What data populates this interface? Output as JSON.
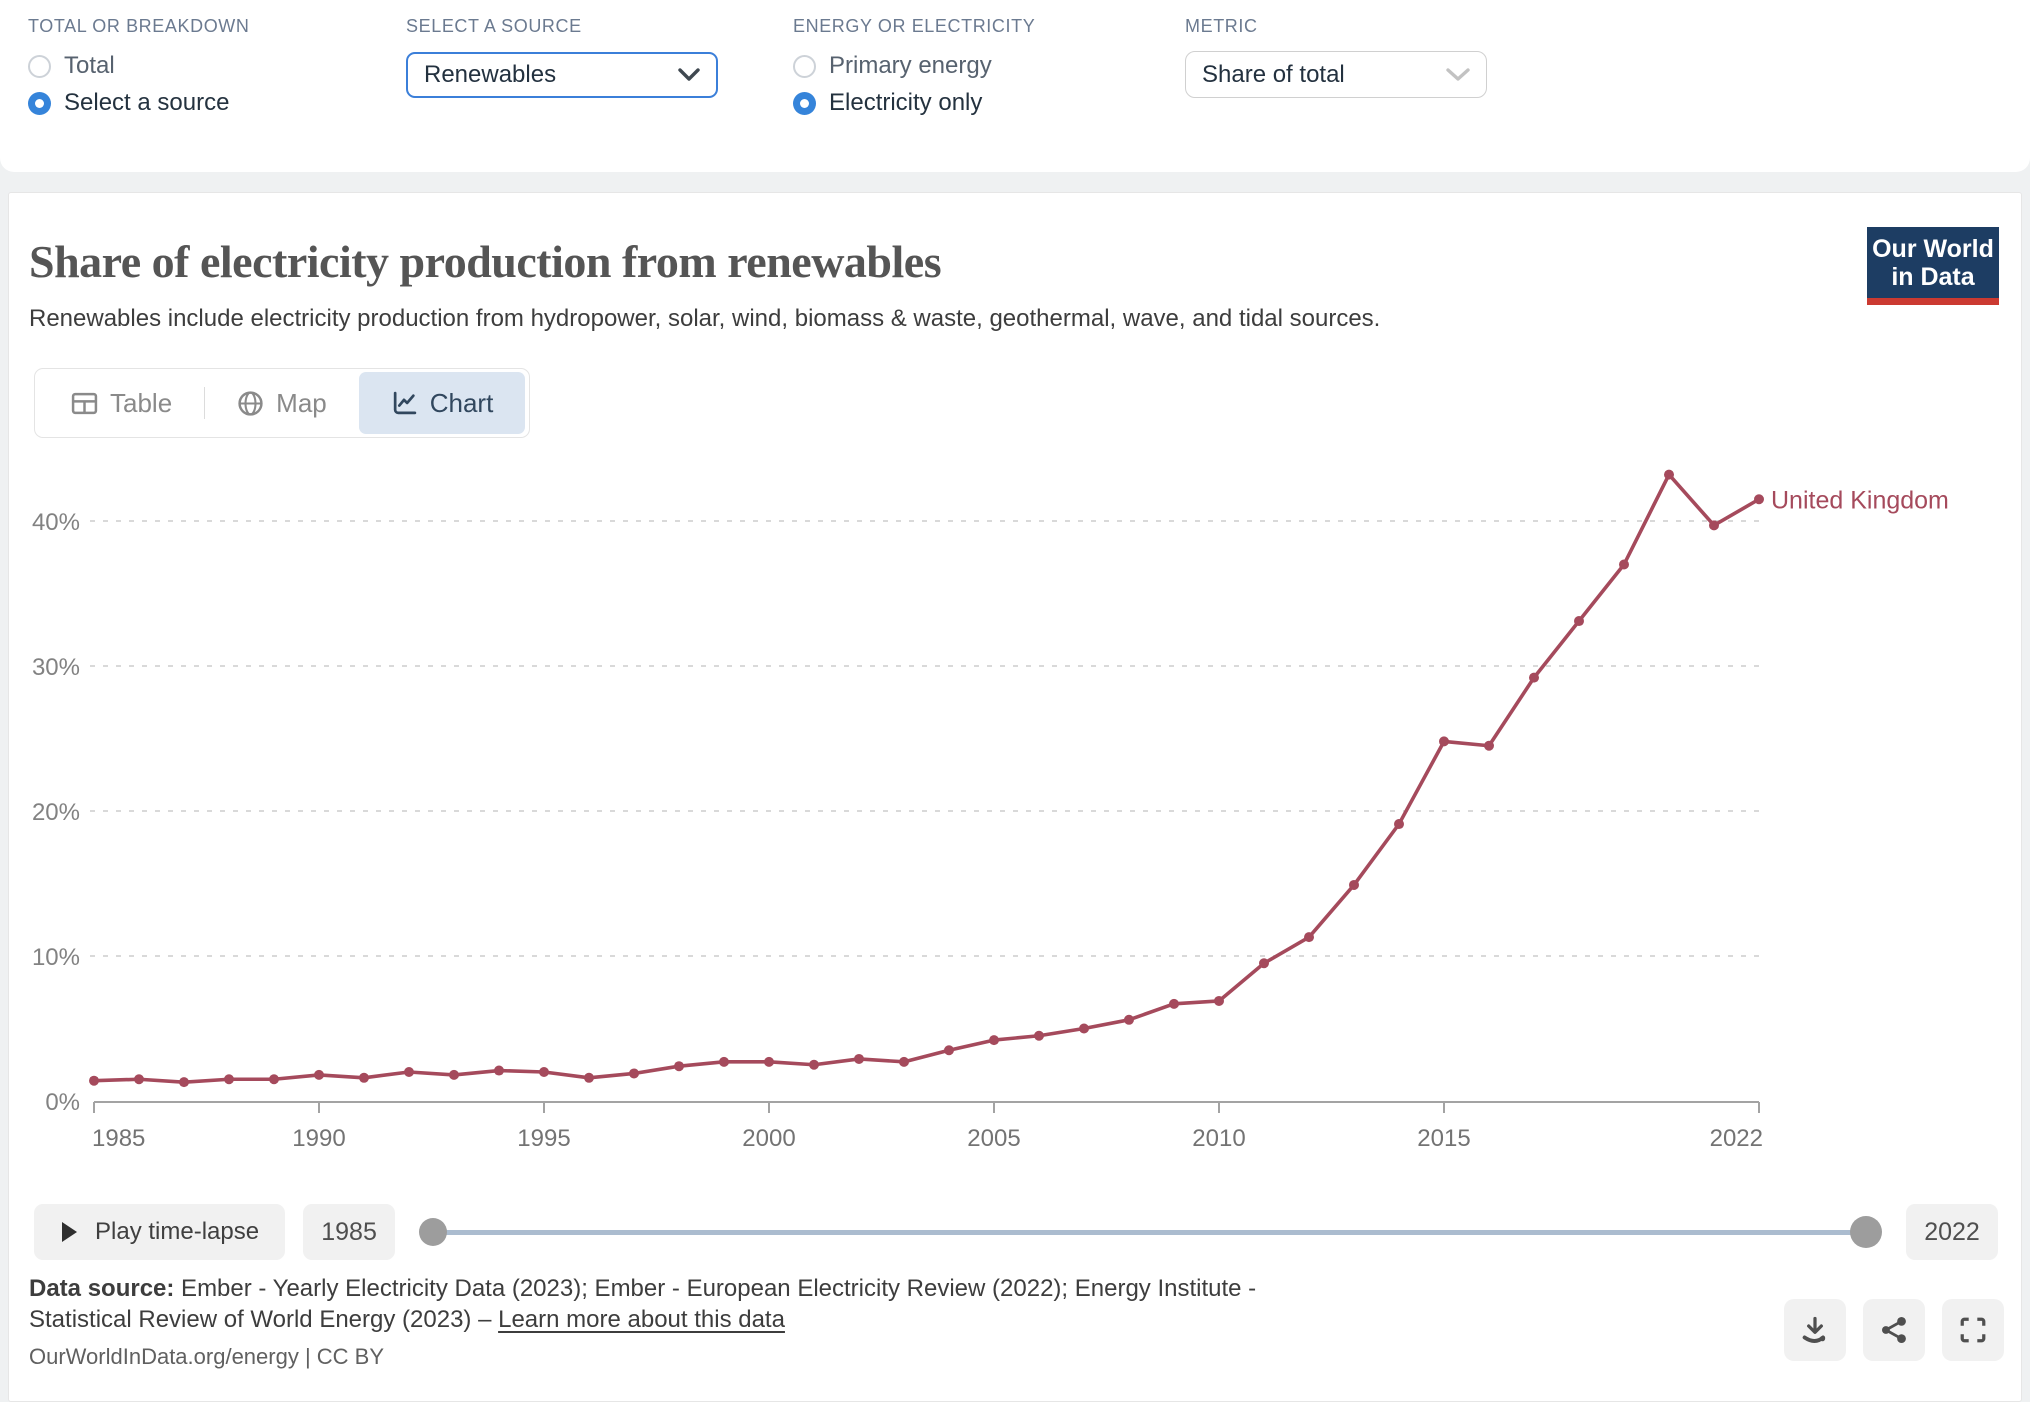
{
  "controls": {
    "total_or_breakdown": {
      "label": "TOTAL OR BREAKDOWN",
      "options": [
        {
          "label": "Total",
          "selected": false
        },
        {
          "label": "Select a source",
          "selected": true
        }
      ]
    },
    "source": {
      "label": "SELECT A SOURCE",
      "value": "Renewables"
    },
    "energy_or_electricity": {
      "label": "ENERGY OR ELECTRICITY",
      "options": [
        {
          "label": "Primary energy",
          "selected": false
        },
        {
          "label": "Electricity only",
          "selected": true
        }
      ]
    },
    "metric": {
      "label": "METRIC",
      "value": "Share of total"
    }
  },
  "header": {
    "title": "Share of electricity production from renewables",
    "subtitle": "Renewables include electricity production from hydropower, solar, wind, biomass & waste, geothermal, wave, and tidal sources.",
    "logo_line1": "Our World",
    "logo_line2": "in Data"
  },
  "tabs": [
    {
      "label": "Table",
      "active": false
    },
    {
      "label": "Map",
      "active": false
    },
    {
      "label": "Chart",
      "active": true
    }
  ],
  "chart_data": {
    "type": "line",
    "title": "Share of electricity production from renewables",
    "entity_label": "United Kingdom",
    "xlabel": "",
    "ylabel": "",
    "xlim": [
      1985,
      2022
    ],
    "ylim": [
      0,
      45
    ],
    "x_ticks": [
      1985,
      1990,
      1995,
      2000,
      2005,
      2010,
      2015,
      2022
    ],
    "y_ticks": [
      0,
      10,
      20,
      30,
      40
    ],
    "y_tick_suffix": "%",
    "grid": "dashed-horizontal",
    "legend_position": "end-of-line-label",
    "series": [
      {
        "name": "United Kingdom",
        "color": "#a54a5c",
        "x": [
          1985,
          1986,
          1987,
          1988,
          1989,
          1990,
          1991,
          1992,
          1993,
          1994,
          1995,
          1996,
          1997,
          1998,
          1999,
          2000,
          2001,
          2002,
          2003,
          2004,
          2005,
          2006,
          2007,
          2008,
          2009,
          2010,
          2011,
          2012,
          2013,
          2014,
          2015,
          2016,
          2017,
          2018,
          2019,
          2020,
          2021,
          2022
        ],
        "values": [
          1.4,
          1.5,
          1.3,
          1.5,
          1.5,
          1.8,
          1.6,
          2.0,
          1.8,
          2.1,
          2.0,
          1.6,
          1.9,
          2.4,
          2.7,
          2.7,
          2.5,
          2.9,
          2.7,
          3.5,
          4.2,
          4.5,
          5.0,
          5.6,
          6.7,
          6.9,
          9.5,
          11.3,
          14.9,
          19.1,
          24.8,
          24.5,
          29.2,
          33.1,
          37.0,
          43.2,
          39.7,
          41.5
        ]
      }
    ]
  },
  "timeline": {
    "play_label": "Play time-lapse",
    "start_year": "1985",
    "end_year": "2022"
  },
  "footer": {
    "data_source_label": "Data source:",
    "data_source_text": " Ember - Yearly Electricity Data (2023); Ember - European Electricity Review (2022); Energy Institute - Statistical Review of World Energy (2023) – ",
    "learn_more_label": "Learn more about this data",
    "citation": "OurWorldInData.org/energy | CC BY"
  },
  "icons": {
    "radio-icon": "circle",
    "chevron-down-icon": "⌄",
    "table-icon": "grid",
    "globe-icon": "🌐",
    "chart-icon": "zigzag-line",
    "play-icon": "▶",
    "download-icon": "⬇ into tray",
    "share-icon": "share-nodes",
    "fullscreen-icon": "corner-brackets"
  },
  "colors": {
    "accent_blue": "#3584da",
    "select_border_blue": "#3b7fd9",
    "series_line": "#a54a5c",
    "active_tab_bg": "#dbe5f1",
    "active_tab_text": "#31475e",
    "logo_bg": "#1d3d63",
    "logo_stripe": "#cb3a31",
    "gridline": "#d9d9d9",
    "axis": "#a3a3a3",
    "slider_track": "#abbccf",
    "slider_handle": "#9d9d9d",
    "button_bg": "#f1f1f1"
  }
}
